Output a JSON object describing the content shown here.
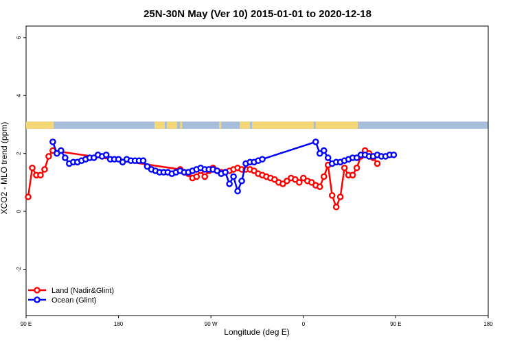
{
  "chart_data": {
    "type": "line",
    "title": "25N-30N May (Ver 10)   2015-01-01 to 2020-12-18",
    "xlabel": "Longitude (deg E)",
    "ylabel": "XCO2 - MLO trend (ppm)",
    "xlim": [
      90,
      450
    ],
    "ylim": [
      -3.6,
      6.4
    ],
    "x_ticks": [
      90,
      180,
      270,
      360,
      450,
      540
    ],
    "x_tick_labels": [
      "90 E",
      "180",
      "90 W",
      "0",
      "90 E",
      "180"
    ],
    "y_ticks": [
      -2,
      0,
      2,
      4,
      6
    ],
    "y_tick_labels": [
      "-2",
      "0",
      "2",
      "4",
      "6"
    ],
    "legend_position": "bottom-left",
    "land_band": {
      "y_range": [
        2.85,
        3.1
      ],
      "ocean_color": "#a6bddb",
      "land_color": "#f6d776",
      "land_segments": [
        [
          90,
          117
        ],
        [
          215,
          225
        ],
        [
          227,
          237
        ],
        [
          240,
          242
        ],
        [
          278,
          280
        ],
        [
          298,
          308
        ],
        [
          310,
          370
        ],
        [
          372,
          413
        ]
      ]
    },
    "series": [
      {
        "name": "Land (Nadir&Glint)",
        "color": "#ff0000",
        "x": [
          92,
          96,
          100,
          104,
          108,
          112,
          116,
          240,
          244,
          248,
          252,
          256,
          260,
          264,
          268,
          272,
          276,
          280,
          284,
          288,
          292,
          296,
          300,
          304,
          308,
          312,
          316,
          320,
          324,
          328,
          332,
          336,
          340,
          344,
          348,
          352,
          356,
          360,
          364,
          368,
          372,
          376,
          380,
          384,
          388,
          392,
          396,
          400,
          404,
          408,
          412,
          416,
          420,
          424,
          428,
          432
        ],
        "y": [
          0.5,
          1.5,
          1.25,
          1.25,
          1.45,
          1.9,
          2.1,
          1.45,
          1.35,
          1.3,
          1.15,
          1.2,
          1.4,
          1.2,
          1.4,
          1.5,
          1.4,
          1.35,
          1.35,
          1.4,
          1.45,
          1.5,
          1.45,
          1.45,
          1.45,
          1.4,
          1.3,
          1.25,
          1.2,
          1.15,
          1.1,
          1.0,
          0.95,
          1.05,
          1.15,
          1.1,
          1.0,
          1.15,
          1.05,
          1.0,
          0.9,
          0.85,
          1.2,
          1.6,
          0.55,
          0.15,
          0.5,
          1.5,
          1.25,
          1.25,
          1.5,
          1.9,
          2.1,
          2.0,
          1.85,
          1.65
        ]
      },
      {
        "name": "Ocean (Glint)",
        "color": "#0000ff",
        "x": [
          116,
          120,
          124,
          128,
          132,
          136,
          140,
          144,
          148,
          152,
          156,
          160,
          164,
          168,
          172,
          176,
          180,
          184,
          188,
          192,
          196,
          200,
          204,
          208,
          212,
          216,
          220,
          224,
          228,
          232,
          236,
          240,
          244,
          248,
          252,
          256,
          260,
          264,
          268,
          272,
          276,
          280,
          284,
          288,
          292,
          296,
          300,
          304,
          308,
          312,
          316,
          320,
          372,
          376,
          380,
          384,
          388,
          392,
          396,
          400,
          404,
          408,
          412,
          416,
          420,
          424,
          428,
          432,
          436,
          440,
          444,
          448
        ],
        "y": [
          2.4,
          2.0,
          2.1,
          1.85,
          1.65,
          1.7,
          1.7,
          1.75,
          1.8,
          1.85,
          1.85,
          1.95,
          1.9,
          1.95,
          1.8,
          1.8,
          1.8,
          1.7,
          1.8,
          1.75,
          1.75,
          1.75,
          1.75,
          1.55,
          1.45,
          1.4,
          1.35,
          1.35,
          1.35,
          1.3,
          1.35,
          1.4,
          1.35,
          1.35,
          1.4,
          1.45,
          1.5,
          1.45,
          1.45,
          1.45,
          1.4,
          1.3,
          1.35,
          0.95,
          1.2,
          0.7,
          1.05,
          1.65,
          1.7,
          1.7,
          1.75,
          1.8,
          2.4,
          2.0,
          2.1,
          1.85,
          1.65,
          1.7,
          1.7,
          1.75,
          1.8,
          1.85,
          1.85,
          1.95,
          1.95,
          1.9,
          1.9,
          1.95,
          1.9,
          1.9,
          1.95,
          1.95
        ]
      }
    ]
  }
}
